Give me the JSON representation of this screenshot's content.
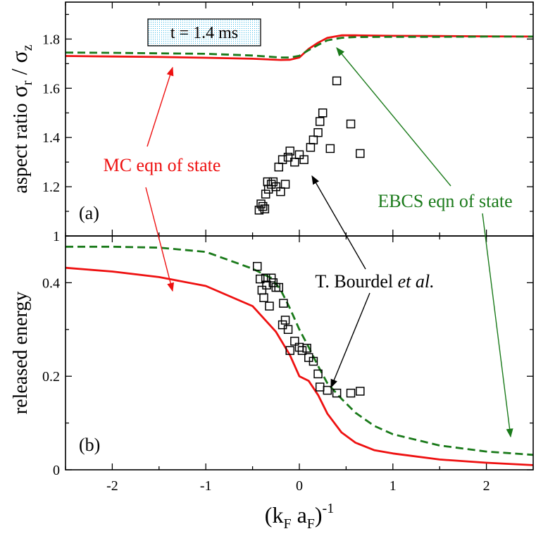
{
  "chart_data": [
    {
      "panel": "(a)",
      "type": "line",
      "ylabel": "aspect ratio",
      "ylabel_math": {
        "s1": "σ",
        "s1_sub": "r",
        "slash": " / ",
        "s2": "σ",
        "s2_sub": "z"
      },
      "xlim": [
        -2.5,
        2.5
      ],
      "ylim": [
        1.0,
        1.95
      ],
      "yticks": [
        1.2,
        1.4,
        1.6,
        1.8
      ],
      "yticklabels": [
        "1.2",
        "1.4",
        "1.6",
        "1.8"
      ],
      "annotation_box": "t = 1.4 ms",
      "series": [
        {
          "name": "MC eqn of state",
          "style": "solid",
          "color": "#ee1111",
          "x": [
            -2.5,
            -2.0,
            -1.5,
            -1.0,
            -0.5,
            -0.2,
            -0.1,
            0.0,
            0.1,
            0.2,
            0.3,
            0.45,
            0.6,
            1.0,
            1.5,
            2.0,
            2.5
          ],
          "y": [
            1.731,
            1.729,
            1.727,
            1.724,
            1.72,
            1.715,
            1.716,
            1.725,
            1.76,
            1.785,
            1.805,
            1.815,
            1.815,
            1.813,
            1.812,
            1.811,
            1.81
          ]
        },
        {
          "name": "EBCS eqn of state",
          "style": "dashed",
          "color": "#1a7a1a",
          "x": [
            -2.5,
            -2.0,
            -1.5,
            -1.0,
            -0.5,
            -0.2,
            -0.1,
            0.0,
            0.1,
            0.2,
            0.3,
            0.45,
            0.6,
            1.0,
            1.5,
            2.0,
            2.5
          ],
          "y": [
            1.745,
            1.744,
            1.742,
            1.74,
            1.733,
            1.725,
            1.725,
            1.732,
            1.755,
            1.776,
            1.795,
            1.805,
            1.808,
            1.809,
            1.809,
            1.81,
            1.81
          ]
        },
        {
          "name": "T. Bourdel et al.",
          "style": "markers-square",
          "color": "#000000",
          "x": [
            -0.43,
            -0.41,
            -0.39,
            -0.37,
            -0.36,
            -0.34,
            -0.33,
            -0.3,
            -0.28,
            -0.25,
            -0.22,
            -0.2,
            -0.18,
            -0.15,
            -0.12,
            -0.1,
            -0.05,
            0.0,
            0.05,
            0.12,
            0.15,
            0.2,
            0.22,
            0.25,
            0.33,
            0.4,
            0.55,
            0.65
          ],
          "y": [
            1.105,
            1.13,
            1.12,
            1.11,
            1.17,
            1.22,
            1.19,
            1.21,
            1.22,
            1.2,
            1.28,
            1.18,
            1.31,
            1.21,
            1.32,
            1.345,
            1.3,
            1.33,
            1.31,
            1.36,
            1.39,
            1.42,
            1.465,
            1.5,
            1.355,
            1.63,
            1.455,
            1.335
          ]
        }
      ],
      "annotations": [
        {
          "text": "MC eqn of state",
          "color": "#ee1111"
        },
        {
          "text": "EBCS eqn of state",
          "color": "#1a7a1a"
        }
      ]
    },
    {
      "panel": "(b)",
      "type": "line",
      "ylabel": "released energy",
      "xlabel_math": {
        "open": "(k",
        "sub1": "F",
        "mid": " a",
        "sub2": "F",
        "close": ")",
        "sup": "-1"
      },
      "xlim": [
        -2.5,
        2.5
      ],
      "ylim": [
        0,
        0.5
      ],
      "xticks": [
        -2,
        -1,
        0,
        1,
        2
      ],
      "xticklabels": [
        "-2",
        "-1",
        "0",
        "1",
        "2"
      ],
      "yticks": [
        0,
        0.2,
        0.4
      ],
      "yticklabels": [
        "0",
        "0.2",
        "0.4"
      ],
      "series": [
        {
          "name": "MC eqn of state",
          "style": "solid",
          "color": "#ee1111",
          "x": [
            -2.5,
            -2.0,
            -1.5,
            -1.0,
            -0.5,
            -0.25,
            -0.1,
            0.0,
            0.1,
            0.2,
            0.3,
            0.45,
            0.6,
            0.8,
            1.0,
            1.5,
            2.0,
            2.5
          ],
          "y": [
            0.432,
            0.424,
            0.412,
            0.393,
            0.35,
            0.295,
            0.245,
            0.2,
            0.19,
            0.16,
            0.12,
            0.08,
            0.058,
            0.042,
            0.035,
            0.022,
            0.015,
            0.01
          ]
        },
        {
          "name": "EBCS eqn of state",
          "style": "dashed",
          "color": "#1a7a1a",
          "x": [
            -2.5,
            -2.0,
            -1.5,
            -1.0,
            -0.5,
            -0.3,
            -0.2,
            -0.1,
            0.0,
            0.1,
            0.2,
            0.3,
            0.45,
            0.6,
            0.8,
            1.0,
            1.5,
            2.0,
            2.5
          ],
          "y": [
            0.477,
            0.477,
            0.475,
            0.466,
            0.43,
            0.41,
            0.385,
            0.345,
            0.3,
            0.262,
            0.222,
            0.185,
            0.152,
            0.122,
            0.094,
            0.076,
            0.052,
            0.039,
            0.032
          ]
        },
        {
          "name": "T. Bourdel et al.",
          "style": "markers-square",
          "color": "#000000",
          "x": [
            -0.45,
            -0.42,
            -0.4,
            -0.38,
            -0.36,
            -0.35,
            -0.32,
            -0.3,
            -0.28,
            -0.25,
            -0.22,
            -0.18,
            -0.17,
            -0.15,
            -0.12,
            -0.1,
            -0.05,
            0.0,
            0.03,
            0.08,
            0.1,
            0.15,
            0.2,
            0.22,
            0.3,
            0.4,
            0.55,
            0.65
          ],
          "y": [
            0.435,
            0.408,
            0.384,
            0.368,
            0.41,
            0.395,
            0.35,
            0.41,
            0.4,
            0.39,
            0.39,
            0.31,
            0.356,
            0.32,
            0.3,
            0.255,
            0.275,
            0.262,
            0.255,
            0.26,
            0.24,
            0.232,
            0.205,
            0.177,
            0.17,
            0.164,
            0.164,
            0.168
          ]
        }
      ],
      "annotations": [
        {
          "text": "T. Bourdel",
          "italic_suffix": "et al.",
          "color": "#000000"
        }
      ]
    }
  ]
}
